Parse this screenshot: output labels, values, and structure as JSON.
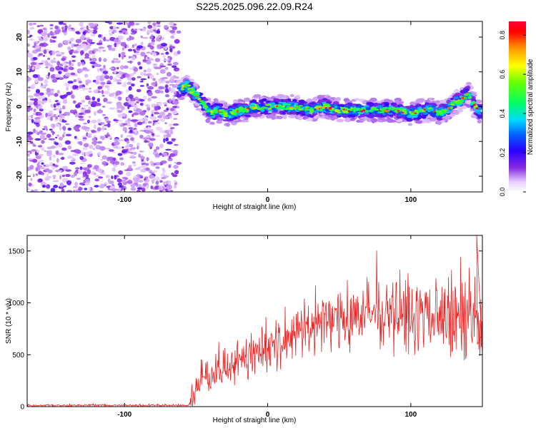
{
  "figure": {
    "title": "S225.2025.096.22.09.R24"
  },
  "chart_data": [
    {
      "type": "heatmap",
      "xlabel": "Height of straight line (km)",
      "ylabel": "Frequency (Hz)",
      "xlim": [
        -168,
        150
      ],
      "ylim": [
        -24.5,
        24.5
      ],
      "x_ticks": [
        -100,
        0,
        100
      ],
      "y_ticks": [
        -20,
        -10,
        0,
        10,
        20
      ],
      "colorbar": {
        "label": "Normalized spectral amplitude",
        "range": [
          0,
          0.87
        ],
        "ticks": [
          "0.0",
          "0.2",
          "0.4",
          "0.6",
          "0.8"
        ],
        "colormap": "rainbow: white/violet (low) → blue → cyan → green → yellow → red (high)"
      },
      "noise_region_x": [
        -168,
        -62
      ],
      "signal_trace": {
        "x": [
          -62,
          -56,
          -50,
          -45,
          -40,
          -35,
          -30,
          -25,
          -20,
          -15,
          -10,
          -5,
          0,
          10,
          20,
          30,
          40,
          50,
          60,
          70,
          80,
          90,
          100,
          110,
          115,
          120,
          125,
          130,
          135,
          140,
          145,
          150
        ],
        "frequency_hz": [
          5,
          6,
          3,
          1,
          -2,
          -1,
          -2,
          -2,
          -1,
          -1,
          0,
          0,
          0,
          0,
          0,
          -1,
          0,
          -1,
          -1,
          -1,
          -1,
          -1,
          -2,
          -1,
          -1,
          -2,
          -1,
          1,
          2,
          4,
          0,
          -2
        ]
      }
    },
    {
      "type": "line",
      "xlabel": "Height of straight line (km)",
      "ylabel": "SNR (10 * v/v)",
      "xlim": [
        -168,
        150
      ],
      "ylim": [
        0,
        1650
      ],
      "x_ticks": [
        -100,
        0,
        100
      ],
      "y_ticks": [
        0,
        500,
        1000,
        1500
      ],
      "color": "#ee2222",
      "envelope": {
        "x": [
          -168,
          -55,
          -52,
          -45,
          -40,
          -30,
          -20,
          -10,
          0,
          10,
          20,
          30,
          40,
          50,
          60,
          70,
          80,
          90,
          100,
          110,
          120,
          130,
          140,
          145,
          150
        ],
        "mean": [
          12,
          12,
          120,
          280,
          300,
          380,
          450,
          520,
          560,
          630,
          700,
          780,
          820,
          860,
          880,
          880,
          880,
          870,
          860,
          850,
          860,
          830,
          780,
          760,
          780
        ],
        "spread": [
          8,
          8,
          150,
          200,
          180,
          180,
          190,
          200,
          210,
          230,
          240,
          260,
          270,
          280,
          300,
          310,
          310,
          320,
          320,
          330,
          340,
          350,
          380,
          400,
          420
        ]
      },
      "peak": {
        "x": 146,
        "y": 1650
      }
    }
  ]
}
